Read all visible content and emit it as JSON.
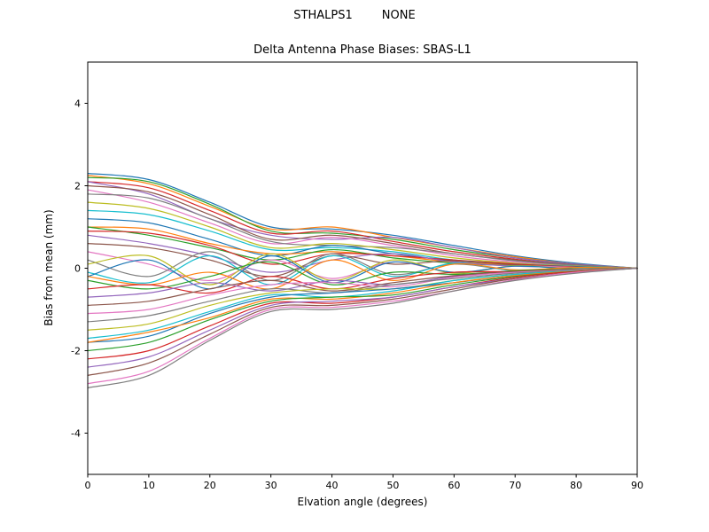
{
  "figure": {
    "title": "STHALPS1        NONE",
    "subtitle": "Delta Antenna Phase Biases: SBAS-L1"
  },
  "chart_data": {
    "type": "line",
    "title": "STHALPS1        NONE",
    "subtitle": "Delta Antenna Phase Biases: SBAS-L1",
    "xlabel": "Elvation angle (degrees)",
    "ylabel": "Bias from mean (mm)",
    "xlim": [
      0,
      90
    ],
    "ylim": [
      -5,
      5
    ],
    "xticks": [
      0,
      10,
      20,
      30,
      40,
      50,
      60,
      70,
      80,
      90
    ],
    "yticks": [
      -4,
      -2,
      0,
      2,
      4
    ],
    "grid": false,
    "legend": "none",
    "x": [
      0,
      10,
      20,
      30,
      40,
      50,
      60,
      70,
      80,
      90
    ],
    "palette": [
      "#1f77b4",
      "#ff7f0e",
      "#2ca02c",
      "#d62728",
      "#9467bd",
      "#8c564b",
      "#e377c2",
      "#7f7f7f",
      "#bcbd22",
      "#17becf"
    ],
    "series": [
      {
        "values": [
          2.3,
          2.15,
          1.6,
          1.0,
          0.95,
          0.8,
          0.55,
          0.3,
          0.12,
          0
        ]
      },
      {
        "values": [
          2.25,
          2.05,
          1.5,
          0.95,
          1.0,
          0.75,
          0.5,
          0.28,
          0.1,
          0
        ]
      },
      {
        "values": [
          2.2,
          2.1,
          1.55,
          0.9,
          0.85,
          0.7,
          0.45,
          0.25,
          0.1,
          0
        ]
      },
      {
        "values": [
          2.1,
          1.95,
          1.4,
          0.85,
          0.9,
          0.65,
          0.4,
          0.22,
          0.08,
          0
        ]
      },
      {
        "values": [
          2.1,
          1.8,
          1.2,
          0.8,
          0.7,
          0.75,
          0.5,
          0.25,
          0.1,
          0
        ]
      },
      {
        "values": [
          2.0,
          1.85,
          1.3,
          0.7,
          0.8,
          0.6,
          0.35,
          0.2,
          0.08,
          0
        ]
      },
      {
        "values": [
          1.9,
          1.6,
          1.1,
          0.6,
          0.75,
          0.55,
          0.3,
          0.15,
          0.06,
          0
        ]
      },
      {
        "values": [
          1.8,
          1.7,
          1.2,
          0.65,
          0.55,
          0.5,
          0.35,
          0.18,
          0.07,
          0
        ]
      },
      {
        "values": [
          1.6,
          1.45,
          1.0,
          0.5,
          0.6,
          0.45,
          0.25,
          0.12,
          0.05,
          0
        ]
      },
      {
        "values": [
          1.4,
          1.3,
          0.9,
          0.45,
          0.5,
          0.4,
          0.2,
          0.1,
          0.04,
          0
        ]
      },
      {
        "values": [
          1.2,
          1.1,
          0.7,
          0.3,
          0.55,
          0.35,
          0.18,
          0.1,
          0.04,
          0
        ]
      },
      {
        "values": [
          1.0,
          0.95,
          0.6,
          0.35,
          0.4,
          0.3,
          0.15,
          0.08,
          0.03,
          0
        ]
      },
      {
        "values": [
          1.0,
          0.8,
          0.5,
          0.2,
          0.45,
          0.25,
          0.12,
          0.06,
          0.02,
          0
        ]
      },
      {
        "values": [
          0.9,
          0.85,
          0.55,
          0.1,
          0.35,
          0.3,
          0.2,
          0.1,
          0.03,
          0
        ]
      },
      {
        "values": [
          0.8,
          0.6,
          0.3,
          -0.1,
          0.2,
          0.35,
          0.15,
          0.05,
          0.02,
          0
        ]
      },
      {
        "values": [
          0.6,
          0.5,
          0.2,
          -0.2,
          0.3,
          0.1,
          0.18,
          0.08,
          0.03,
          0
        ]
      },
      {
        "values": [
          0.4,
          0.1,
          -0.3,
          0.2,
          -0.25,
          0.15,
          -0.1,
          0.05,
          0.02,
          0
        ]
      },
      {
        "values": [
          0.2,
          -0.2,
          0.4,
          -0.3,
          0.35,
          -0.15,
          0.1,
          -0.05,
          0.02,
          0
        ]
      },
      {
        "values": [
          0.1,
          0.3,
          -0.4,
          0.35,
          -0.3,
          0.2,
          -0.12,
          0.06,
          -0.02,
          0
        ]
      },
      {
        "values": [
          -0.1,
          -0.35,
          0.3,
          -0.4,
          0.3,
          -0.2,
          0.12,
          -0.06,
          0.02,
          0
        ]
      },
      {
        "values": [
          -0.2,
          0.2,
          -0.5,
          0.3,
          -0.35,
          0.15,
          -0.1,
          0.05,
          -0.02,
          0
        ]
      },
      {
        "values": [
          -0.2,
          -0.4,
          -0.1,
          -0.5,
          0.2,
          -0.3,
          0.1,
          -0.04,
          0.02,
          0
        ]
      },
      {
        "values": [
          -0.3,
          -0.5,
          -0.2,
          0.15,
          -0.4,
          -0.1,
          -0.15,
          -0.06,
          -0.02,
          0
        ]
      },
      {
        "values": [
          -0.5,
          -0.4,
          -0.6,
          -0.2,
          -0.5,
          -0.25,
          -0.1,
          -0.08,
          -0.03,
          0
        ]
      },
      {
        "values": [
          -0.7,
          -0.6,
          -0.35,
          -0.55,
          -0.3,
          -0.4,
          -0.2,
          -0.1,
          -0.04,
          0
        ]
      },
      {
        "values": [
          -0.9,
          -0.8,
          -0.5,
          -0.3,
          -0.55,
          -0.35,
          -0.18,
          -0.08,
          -0.03,
          0
        ]
      },
      {
        "values": [
          -1.1,
          -1.0,
          -0.65,
          -0.4,
          -0.35,
          -0.45,
          -0.22,
          -0.1,
          -0.04,
          0
        ]
      },
      {
        "values": [
          -1.3,
          -1.15,
          -0.8,
          -0.5,
          -0.6,
          -0.4,
          -0.25,
          -0.12,
          -0.05,
          0
        ]
      },
      {
        "values": [
          -1.5,
          -1.35,
          -0.9,
          -0.6,
          -0.5,
          -0.5,
          -0.3,
          -0.15,
          -0.06,
          0
        ]
      },
      {
        "values": [
          -1.7,
          -1.5,
          -1.05,
          -0.65,
          -0.7,
          -0.55,
          -0.3,
          -0.15,
          -0.06,
          0
        ]
      },
      {
        "values": [
          -1.8,
          -1.65,
          -1.1,
          -0.7,
          -0.6,
          -0.5,
          -0.35,
          -0.18,
          -0.07,
          0
        ]
      },
      {
        "values": [
          -1.8,
          -1.55,
          -1.2,
          -0.75,
          -0.75,
          -0.6,
          -0.35,
          -0.18,
          -0.07,
          0
        ]
      },
      {
        "values": [
          -2.0,
          -1.8,
          -1.25,
          -0.8,
          -0.7,
          -0.65,
          -0.4,
          -0.2,
          -0.08,
          0
        ]
      },
      {
        "values": [
          -2.2,
          -2.0,
          -1.4,
          -0.85,
          -0.85,
          -0.7,
          -0.45,
          -0.22,
          -0.08,
          0
        ]
      },
      {
        "values": [
          -2.4,
          -2.15,
          -1.5,
          -0.9,
          -0.8,
          -0.7,
          -0.45,
          -0.25,
          -0.1,
          0
        ]
      },
      {
        "values": [
          -2.6,
          -2.3,
          -1.6,
          -0.95,
          -0.9,
          -0.75,
          -0.5,
          -0.25,
          -0.1,
          0
        ]
      },
      {
        "values": [
          -2.8,
          -2.5,
          -1.7,
          -1.0,
          -0.95,
          -0.8,
          -0.55,
          -0.28,
          -0.1,
          0
        ]
      },
      {
        "values": [
          -2.9,
          -2.6,
          -1.75,
          -1.05,
          -1.0,
          -0.85,
          -0.55,
          -0.3,
          -0.12,
          0
        ]
      }
    ]
  }
}
